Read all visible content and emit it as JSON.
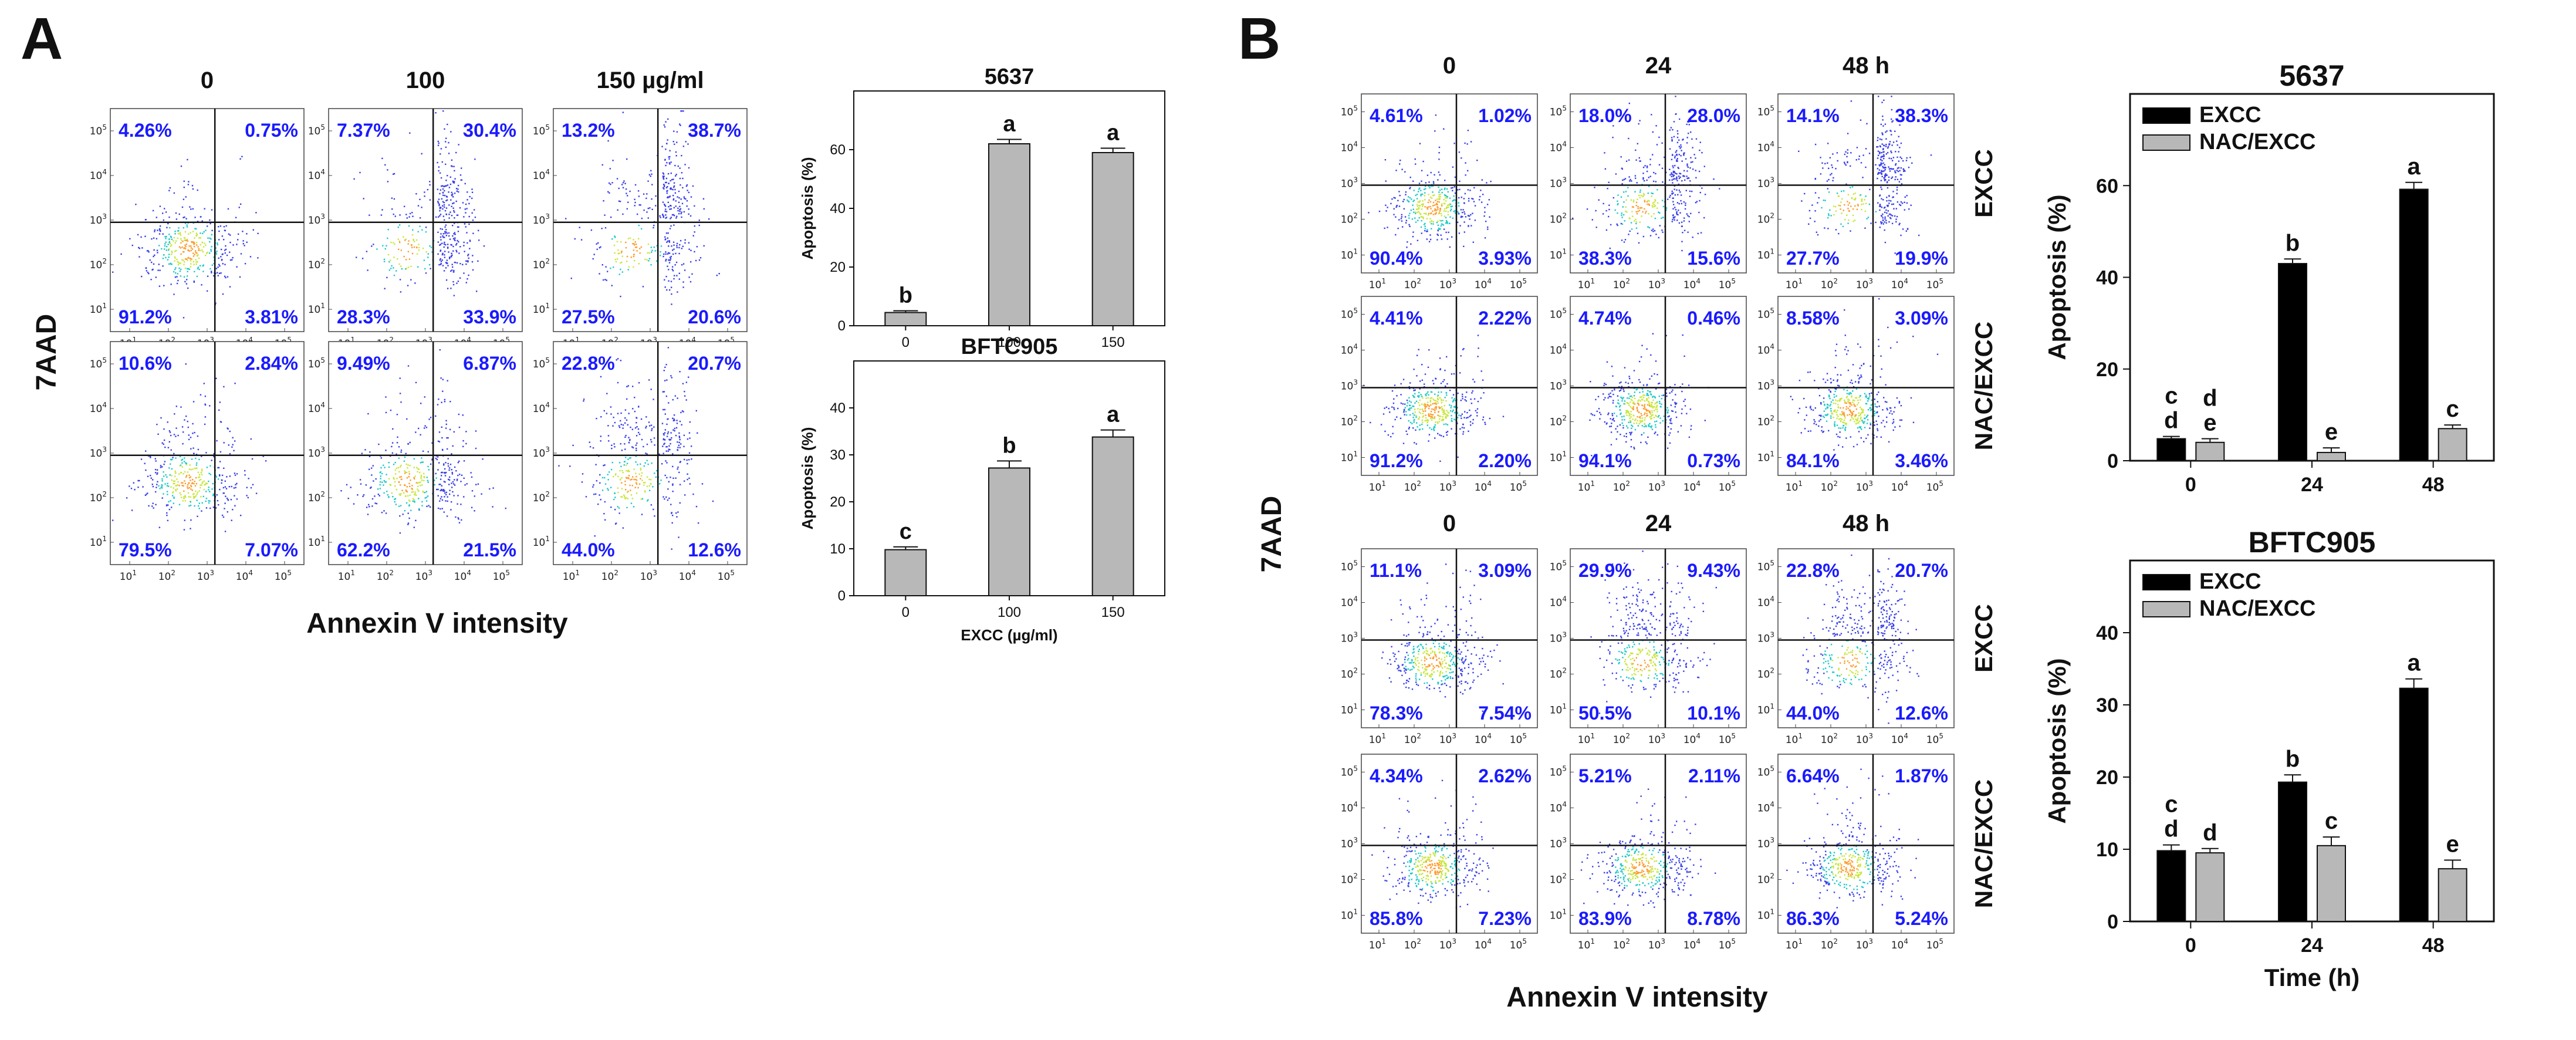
{
  "panels": {
    "A": {
      "letter": "A",
      "columns": [
        "0",
        "100",
        "150 µg/ml"
      ],
      "y_axis_label": "7AAD",
      "x_axis_label": "Annexin V intensity",
      "rows": [
        {
          "plots": [
            [
              "4.26%",
              "0.75%",
              "91.2%",
              "3.81%"
            ],
            [
              "7.37%",
              "30.4%",
              "28.3%",
              "33.9%"
            ],
            [
              "13.2%",
              "38.7%",
              "27.5%",
              "20.6%"
            ]
          ]
        },
        {
          "plots": [
            [
              "10.6%",
              "2.84%",
              "79.5%",
              "7.07%"
            ],
            [
              "9.49%",
              "6.87%",
              "62.2%",
              "21.5%"
            ],
            [
              "22.8%",
              "20.7%",
              "44.0%",
              "12.6%"
            ]
          ]
        }
      ]
    },
    "B": {
      "letter": "B",
      "columns": [
        "0",
        "24",
        "48 h"
      ],
      "y_axis_label": "7AAD",
      "x_axis_label": "Annexin V intensity",
      "row_labels": [
        "EXCC",
        "NAC/EXCC",
        "EXCC",
        "NAC/EXCC"
      ],
      "rows": [
        {
          "plots": [
            [
              "4.61%",
              "1.02%",
              "90.4%",
              "3.93%"
            ],
            [
              "18.0%",
              "28.0%",
              "38.3%",
              "15.6%"
            ],
            [
              "14.1%",
              "38.3%",
              "27.7%",
              "19.9%"
            ]
          ]
        },
        {
          "plots": [
            [
              "4.41%",
              "2.22%",
              "91.2%",
              "2.20%"
            ],
            [
              "4.74%",
              "0.46%",
              "94.1%",
              "0.73%"
            ],
            [
              "8.58%",
              "3.09%",
              "84.1%",
              "3.46%"
            ]
          ]
        },
        {
          "plots": [
            [
              "11.1%",
              "3.09%",
              "78.3%",
              "7.54%"
            ],
            [
              "29.9%",
              "9.43%",
              "50.5%",
              "10.1%"
            ],
            [
              "22.8%",
              "20.7%",
              "44.0%",
              "12.6%"
            ]
          ]
        },
        {
          "plots": [
            [
              "4.34%",
              "2.62%",
              "85.8%",
              "7.23%"
            ],
            [
              "5.21%",
              "2.11%",
              "83.9%",
              "8.78%"
            ],
            [
              "6.64%",
              "1.87%",
              "86.3%",
              "5.24%"
            ]
          ]
        }
      ]
    }
  },
  "flow_ticks": {
    "y": [
      [
        "10",
        "1"
      ],
      [
        "10",
        "2"
      ],
      [
        "10",
        "3"
      ],
      [
        "10",
        "4"
      ],
      [
        "10",
        "5"
      ]
    ],
    "x": [
      [
        "10",
        "1"
      ],
      [
        "10",
        "2"
      ],
      [
        "10",
        "3"
      ],
      [
        "10",
        "4"
      ],
      [
        "10",
        "5"
      ]
    ]
  },
  "chart_data": [
    {
      "id": "A-5637",
      "type": "bar",
      "title": "5637",
      "categories": [
        "0",
        "100",
        "150"
      ],
      "values": [
        4.5,
        62,
        59
      ],
      "errors": [
        0.6,
        1.5,
        1.5
      ],
      "sig_labels": [
        "b",
        "a",
        "a"
      ],
      "ylabel": "Apoptosis (%)",
      "xlabel": "",
      "ylim": [
        0,
        80
      ],
      "yticks": [
        0,
        20,
        40,
        60
      ],
      "color": "#b8b8b8"
    },
    {
      "id": "A-BFTC905",
      "type": "bar",
      "title": "BFTC905",
      "categories": [
        "0",
        "100",
        "150"
      ],
      "values": [
        9.8,
        27.2,
        33.8
      ],
      "errors": [
        0.6,
        1.5,
        1.5
      ],
      "sig_labels": [
        "c",
        "b",
        "a"
      ],
      "ylabel": "Apoptosis (%)",
      "xlabel": "EXCC (µg/ml)",
      "ylim": [
        0,
        50
      ],
      "yticks": [
        0,
        10,
        20,
        30,
        40
      ],
      "color": "#b8b8b8"
    },
    {
      "id": "B-5637",
      "type": "bar",
      "title": "5637",
      "categories": [
        "0",
        "24",
        "48"
      ],
      "series": [
        {
          "name": "EXCC",
          "values": [
            4.8,
            43,
            59.2
          ],
          "errors": [
            0.5,
            1.0,
            1.5
          ],
          "color": "#000000",
          "sig_labels": [
            [
              "c",
              "d"
            ],
            [
              "b"
            ],
            [
              "a"
            ]
          ]
        },
        {
          "name": "NAC/EXCC",
          "values": [
            4.0,
            1.8,
            7.0
          ],
          "errors": [
            0.8,
            1.0,
            0.8
          ],
          "color": "#b8b8b8",
          "sig_labels": [
            [
              "d",
              "e"
            ],
            [
              "e"
            ],
            [
              "c"
            ]
          ]
        }
      ],
      "ylabel": "Apoptosis (%)",
      "xlabel": "",
      "ylim": [
        0,
        80
      ],
      "yticks": [
        0,
        20,
        40,
        60
      ],
      "legend": "top-left"
    },
    {
      "id": "B-BFTC905",
      "type": "bar",
      "title": "BFTC905",
      "categories": [
        "0",
        "24",
        "48"
      ],
      "series": [
        {
          "name": "EXCC",
          "values": [
            9.8,
            19.3,
            32.3
          ],
          "errors": [
            0.8,
            1.0,
            1.3
          ],
          "color": "#000000",
          "sig_labels": [
            [
              "c",
              "d"
            ],
            [
              "b"
            ],
            [
              "a"
            ]
          ]
        },
        {
          "name": "NAC/EXCC",
          "values": [
            9.5,
            10.5,
            7.3
          ],
          "errors": [
            0.6,
            1.2,
            1.2
          ],
          "color": "#b8b8b8",
          "sig_labels": [
            [
              "d"
            ],
            [
              "c"
            ],
            [
              "e"
            ]
          ]
        }
      ],
      "ylabel": "Apoptosis (%)",
      "xlabel": "Time (h)",
      "ylim": [
        0,
        50
      ],
      "yticks": [
        0,
        10,
        20,
        30,
        40
      ],
      "legend": "top-left"
    }
  ]
}
